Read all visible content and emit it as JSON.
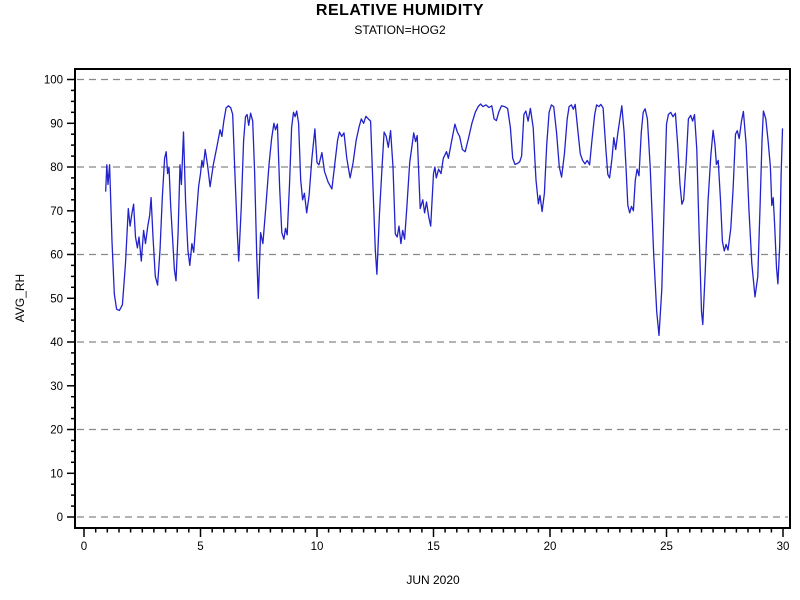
{
  "title": "RELATIVE HUMIDITY",
  "subtitle": "STATION=HOG2",
  "chart_data": {
    "type": "line",
    "title": "RELATIVE HUMIDITY",
    "subtitle": "STATION=HOG2",
    "xlabel": "JUN 2020",
    "ylabel": "AVG_RH",
    "xlim": [
      0,
      30
    ],
    "ylim": [
      0,
      100
    ],
    "x_major_tick_step": 5,
    "x_minor_tick_step": 0.5,
    "y_major_tick_step": 10,
    "y_minor_tick_step": 2.5,
    "x_tick_labels": [
      "0",
      "5",
      "10",
      "15",
      "20",
      "25",
      "30"
    ],
    "y_tick_labels": [
      "0",
      "10",
      "20",
      "30",
      "40",
      "50",
      "60",
      "70",
      "80",
      "90",
      "100"
    ],
    "gridlines_y": [
      0,
      20,
      40,
      60,
      80,
      100
    ],
    "grid_style": "dashed",
    "grid_color": "#888888",
    "axis_color": "#000000",
    "line_color": "#2222cc",
    "legend": "none",
    "series": [
      {
        "name": "AVG_RH",
        "points": [
          [
            0.93,
            74.5
          ],
          [
            0.98,
            80.5
          ],
          [
            1.03,
            76
          ],
          [
            1.1,
            80.5
          ],
          [
            1.2,
            63
          ],
          [
            1.3,
            51
          ],
          [
            1.4,
            47.5
          ],
          [
            1.52,
            47.2
          ],
          [
            1.65,
            48.5
          ],
          [
            1.78,
            58
          ],
          [
            1.9,
            70.5
          ],
          [
            1.98,
            66.5
          ],
          [
            2.06,
            69.5
          ],
          [
            2.13,
            71.5
          ],
          [
            2.21,
            64
          ],
          [
            2.29,
            61.5
          ],
          [
            2.36,
            64
          ],
          [
            2.46,
            58.5
          ],
          [
            2.56,
            65.5
          ],
          [
            2.64,
            62.5
          ],
          [
            2.74,
            66.5
          ],
          [
            2.82,
            69
          ],
          [
            2.88,
            73
          ],
          [
            2.96,
            64
          ],
          [
            3.06,
            55
          ],
          [
            3.16,
            53
          ],
          [
            3.26,
            61
          ],
          [
            3.36,
            73
          ],
          [
            3.46,
            82
          ],
          [
            3.53,
            83.5
          ],
          [
            3.59,
            78.5
          ],
          [
            3.65,
            80
          ],
          [
            3.72,
            71
          ],
          [
            3.8,
            64
          ],
          [
            3.88,
            56.5
          ],
          [
            3.95,
            54
          ],
          [
            4.04,
            65
          ],
          [
            4.12,
            80.5
          ],
          [
            4.18,
            76
          ],
          [
            4.27,
            88
          ],
          [
            4.36,
            72
          ],
          [
            4.46,
            61
          ],
          [
            4.54,
            57.5
          ],
          [
            4.63,
            62.5
          ],
          [
            4.71,
            60.5
          ],
          [
            4.81,
            68
          ],
          [
            4.92,
            75.5
          ],
          [
            5.0,
            78.5
          ],
          [
            5.06,
            81.5
          ],
          [
            5.12,
            80
          ],
          [
            5.2,
            84
          ],
          [
            5.3,
            80.5
          ],
          [
            5.41,
            75.5
          ],
          [
            5.55,
            80.5
          ],
          [
            5.7,
            84.5
          ],
          [
            5.84,
            88.5
          ],
          [
            5.92,
            87
          ],
          [
            6.0,
            90.5
          ],
          [
            6.1,
            93.5
          ],
          [
            6.2,
            94
          ],
          [
            6.3,
            93.5
          ],
          [
            6.38,
            92
          ],
          [
            6.48,
            78
          ],
          [
            6.58,
            65
          ],
          [
            6.64,
            58.5
          ],
          [
            6.75,
            71
          ],
          [
            6.85,
            86
          ],
          [
            6.93,
            91.5
          ],
          [
            7.0,
            92
          ],
          [
            7.07,
            89.5
          ],
          [
            7.15,
            92.3
          ],
          [
            7.24,
            90.5
          ],
          [
            7.32,
            79
          ],
          [
            7.41,
            60
          ],
          [
            7.48,
            50
          ],
          [
            7.58,
            65
          ],
          [
            7.68,
            62.5
          ],
          [
            7.8,
            70.5
          ],
          [
            7.94,
            80.5
          ],
          [
            8.05,
            86.5
          ],
          [
            8.15,
            90
          ],
          [
            8.22,
            88.5
          ],
          [
            8.3,
            89.8
          ],
          [
            8.4,
            75
          ],
          [
            8.49,
            65
          ],
          [
            8.58,
            63.5
          ],
          [
            8.65,
            66
          ],
          [
            8.72,
            64.5
          ],
          [
            8.82,
            76
          ],
          [
            8.91,
            89
          ],
          [
            8.99,
            92.5
          ],
          [
            9.06,
            91.5
          ],
          [
            9.13,
            92.8
          ],
          [
            9.21,
            90
          ],
          [
            9.3,
            77
          ],
          [
            9.38,
            72.5
          ],
          [
            9.46,
            74
          ],
          [
            9.56,
            69.5
          ],
          [
            9.66,
            73.5
          ],
          [
            9.78,
            82
          ],
          [
            9.91,
            88.7
          ],
          [
            10.0,
            81
          ],
          [
            10.08,
            80.5
          ],
          [
            10.15,
            82
          ],
          [
            10.21,
            83.3
          ],
          [
            10.32,
            79
          ],
          [
            10.48,
            76.5
          ],
          [
            10.64,
            75
          ],
          [
            10.76,
            80.5
          ],
          [
            10.88,
            86
          ],
          [
            10.96,
            88
          ],
          [
            11.06,
            87
          ],
          [
            11.16,
            87.8
          ],
          [
            11.28,
            82
          ],
          [
            11.42,
            77.5
          ],
          [
            11.55,
            81
          ],
          [
            11.68,
            86
          ],
          [
            11.8,
            89
          ],
          [
            11.9,
            91
          ],
          [
            12.0,
            90
          ],
          [
            12.1,
            91.6
          ],
          [
            12.2,
            91
          ],
          [
            12.3,
            90.5
          ],
          [
            12.4,
            76
          ],
          [
            12.5,
            61
          ],
          [
            12.57,
            55.5
          ],
          [
            12.68,
            69
          ],
          [
            12.78,
            79
          ],
          [
            12.88,
            88
          ],
          [
            12.97,
            87
          ],
          [
            13.06,
            84.5
          ],
          [
            13.16,
            88.3
          ],
          [
            13.26,
            80
          ],
          [
            13.36,
            64.7
          ],
          [
            13.44,
            64
          ],
          [
            13.52,
            66.5
          ],
          [
            13.6,
            62.5
          ],
          [
            13.68,
            65.5
          ],
          [
            13.76,
            63.5
          ],
          [
            13.86,
            71
          ],
          [
            13.98,
            81
          ],
          [
            14.08,
            85
          ],
          [
            14.15,
            87.8
          ],
          [
            14.23,
            85.8
          ],
          [
            14.3,
            87.2
          ],
          [
            14.43,
            70.5
          ],
          [
            14.54,
            72.5
          ],
          [
            14.62,
            69.5
          ],
          [
            14.7,
            72
          ],
          [
            14.8,
            68.5
          ],
          [
            14.88,
            66.5
          ],
          [
            15.0,
            78.5
          ],
          [
            15.06,
            80
          ],
          [
            15.12,
            77.5
          ],
          [
            15.22,
            79.5
          ],
          [
            15.32,
            78.5
          ],
          [
            15.42,
            82
          ],
          [
            15.56,
            83.5
          ],
          [
            15.64,
            82
          ],
          [
            15.78,
            86
          ],
          [
            15.92,
            89.8
          ],
          [
            16.02,
            88
          ],
          [
            16.12,
            87
          ],
          [
            16.24,
            84
          ],
          [
            16.36,
            83.5
          ],
          [
            16.5,
            86.5
          ],
          [
            16.65,
            90
          ],
          [
            16.8,
            92.6
          ],
          [
            16.92,
            93.8
          ],
          [
            17.02,
            94.4
          ],
          [
            17.12,
            93.8
          ],
          [
            17.25,
            94.2
          ],
          [
            17.38,
            93.6
          ],
          [
            17.5,
            94
          ],
          [
            17.6,
            91
          ],
          [
            17.7,
            90.6
          ],
          [
            17.8,
            92.5
          ],
          [
            17.92,
            94
          ],
          [
            18.05,
            93.8
          ],
          [
            18.18,
            93.4
          ],
          [
            18.3,
            89
          ],
          [
            18.4,
            82
          ],
          [
            18.5,
            80.6
          ],
          [
            18.6,
            80.8
          ],
          [
            18.7,
            81.2
          ],
          [
            18.78,
            82.5
          ],
          [
            18.88,
            92
          ],
          [
            18.96,
            92.8
          ],
          [
            19.06,
            90.5
          ],
          [
            19.16,
            93.4
          ],
          [
            19.28,
            89
          ],
          [
            19.4,
            77
          ],
          [
            19.5,
            71.6
          ],
          [
            19.57,
            73.5
          ],
          [
            19.66,
            69.8
          ],
          [
            19.76,
            74
          ],
          [
            19.86,
            85
          ],
          [
            19.96,
            92.5
          ],
          [
            20.06,
            94.2
          ],
          [
            20.16,
            93.8
          ],
          [
            20.28,
            88
          ],
          [
            20.4,
            80
          ],
          [
            20.5,
            77.7
          ],
          [
            20.62,
            83
          ],
          [
            20.74,
            91
          ],
          [
            20.82,
            93.8
          ],
          [
            20.92,
            94.2
          ],
          [
            21.0,
            93.2
          ],
          [
            21.08,
            94.3
          ],
          [
            21.2,
            88
          ],
          [
            21.3,
            83
          ],
          [
            21.4,
            81.5
          ],
          [
            21.5,
            80.7
          ],
          [
            21.6,
            81.5
          ],
          [
            21.7,
            80.5
          ],
          [
            21.8,
            86
          ],
          [
            21.92,
            92
          ],
          [
            22.0,
            94.2
          ],
          [
            22.1,
            93.8
          ],
          [
            22.18,
            94.3
          ],
          [
            22.28,
            93.5
          ],
          [
            22.4,
            84
          ],
          [
            22.48,
            78.3
          ],
          [
            22.56,
            77.5
          ],
          [
            22.66,
            82
          ],
          [
            22.74,
            86.7
          ],
          [
            22.82,
            84
          ],
          [
            22.92,
            88
          ],
          [
            23.08,
            94
          ],
          [
            23.18,
            88
          ],
          [
            23.26,
            80
          ],
          [
            23.34,
            71.3
          ],
          [
            23.42,
            69.5
          ],
          [
            23.5,
            71
          ],
          [
            23.58,
            70
          ],
          [
            23.66,
            77
          ],
          [
            23.74,
            79.5
          ],
          [
            23.82,
            78
          ],
          [
            23.92,
            88
          ],
          [
            24.0,
            92.5
          ],
          [
            24.08,
            93.3
          ],
          [
            24.18,
            91
          ],
          [
            24.3,
            80
          ],
          [
            24.45,
            60
          ],
          [
            24.58,
            47
          ],
          [
            24.68,
            41.5
          ],
          [
            24.8,
            52
          ],
          [
            24.92,
            75
          ],
          [
            25.0,
            89.8
          ],
          [
            25.08,
            92
          ],
          [
            25.18,
            92.5
          ],
          [
            25.28,
            91.5
          ],
          [
            25.38,
            92.3
          ],
          [
            25.48,
            85
          ],
          [
            25.58,
            76
          ],
          [
            25.66,
            71.5
          ],
          [
            25.74,
            72.5
          ],
          [
            25.84,
            81
          ],
          [
            25.94,
            91
          ],
          [
            26.04,
            91.8
          ],
          [
            26.12,
            90.5
          ],
          [
            26.2,
            92
          ],
          [
            26.3,
            84
          ],
          [
            26.4,
            65
          ],
          [
            26.5,
            47
          ],
          [
            26.56,
            44
          ],
          [
            26.66,
            56
          ],
          [
            26.78,
            72
          ],
          [
            26.9,
            82.5
          ],
          [
            27.0,
            88.4
          ],
          [
            27.08,
            85
          ],
          [
            27.14,
            80.6
          ],
          [
            27.22,
            81.5
          ],
          [
            27.32,
            72
          ],
          [
            27.4,
            63
          ],
          [
            27.48,
            60.8
          ],
          [
            27.56,
            62.3
          ],
          [
            27.64,
            61
          ],
          [
            27.76,
            66
          ],
          [
            27.86,
            75
          ],
          [
            27.96,
            87.5
          ],
          [
            28.04,
            88.3
          ],
          [
            28.12,
            86.5
          ],
          [
            28.22,
            90.5
          ],
          [
            28.3,
            92.7
          ],
          [
            28.42,
            85
          ],
          [
            28.54,
            70
          ],
          [
            28.66,
            58
          ],
          [
            28.8,
            50.3
          ],
          [
            28.92,
            55
          ],
          [
            29.02,
            72
          ],
          [
            29.1,
            86
          ],
          [
            29.16,
            92.8
          ],
          [
            29.26,
            91
          ],
          [
            29.36,
            86
          ],
          [
            29.46,
            80
          ],
          [
            29.52,
            71.2
          ],
          [
            29.58,
            73
          ],
          [
            29.64,
            67
          ],
          [
            29.72,
            57
          ],
          [
            29.78,
            53.3
          ],
          [
            29.86,
            62
          ],
          [
            29.92,
            78
          ],
          [
            29.98,
            88.7
          ]
        ]
      }
    ]
  }
}
